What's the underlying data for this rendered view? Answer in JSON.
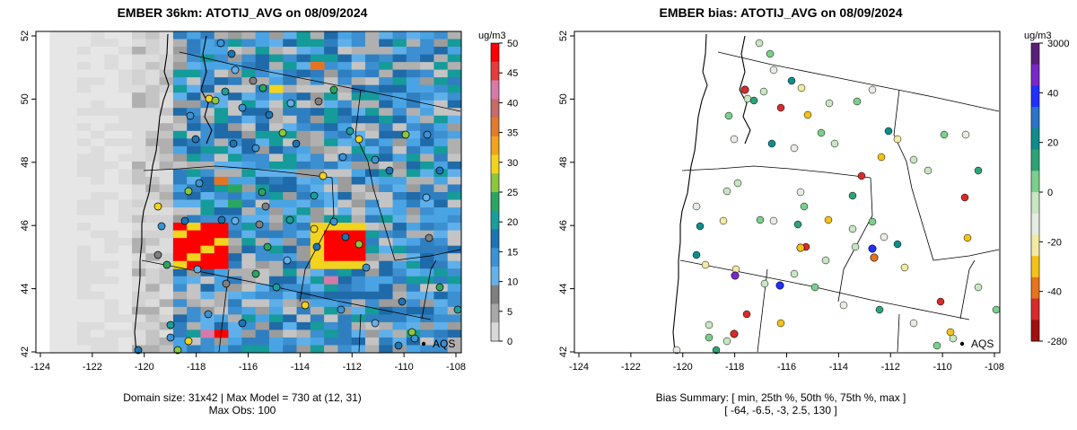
{
  "panels": {
    "left": {
      "title": "EMBER 36km: ATOTIJ_AVG on 08/09/2024",
      "x_ticks": [
        "-124",
        "-122",
        "-120",
        "-118",
        "-116",
        "-114",
        "-112",
        "-110",
        "-108"
      ],
      "y_ticks": [
        "42",
        "44",
        "46",
        "48",
        "50",
        "52"
      ],
      "colorbar": {
        "unit": "ug/m3",
        "labels": [
          "0",
          "5",
          "10",
          "15",
          "20",
          "25",
          "30",
          "35",
          "40",
          "45",
          "50"
        ],
        "colors": [
          "#d9d9d9",
          "#a8a8a8",
          "#7f7f7f",
          "#64b0e8",
          "#3b93d3",
          "#1d74b3",
          "#1b9e9b",
          "#2aa660",
          "#8cc63f",
          "#f2d41f",
          "#f0a41d",
          "#e07b2e",
          "#c86a6a",
          "#d67aa9",
          "#e43c3c",
          "#ff0000"
        ]
      },
      "aqs_label": "AQS",
      "caption_line1": "Domain size: 31x42 | Max Model = 730 at (12, 31)",
      "caption_line2": "Max Obs: 100"
    },
    "right": {
      "title": "EMBER bias: ATOTIJ_AVG on 08/09/2024",
      "x_ticks": [
        "-124",
        "-122",
        "-120",
        "-118",
        "-116",
        "-114",
        "-112",
        "-110",
        "-108"
      ],
      "y_ticks": [
        "42",
        "44",
        "46",
        "48",
        "50",
        "52"
      ],
      "colorbar": {
        "unit": "ug/m3",
        "labels": [
          "3000",
          "40",
          "20",
          "0",
          "-20",
          "-40",
          "-280"
        ],
        "colors": [
          "#a01010",
          "#d72b2b",
          "#e8731f",
          "#f2c21b",
          "#f3e9a2",
          "#e6ece3",
          "#c7e6c1",
          "#7ccf8c",
          "#2fa275",
          "#108c8c",
          "#2b74c8",
          "#2030ff",
          "#7a28c8",
          "#5a1f78"
        ]
      },
      "aqs_label": "AQS",
      "caption_line1": "Bias Summary: [ min, 25th %, 50th %, 75th %, max ]",
      "caption_line2": "[ -64,   -6.5,   -3,   2.5,   130 ]"
    }
  }
}
